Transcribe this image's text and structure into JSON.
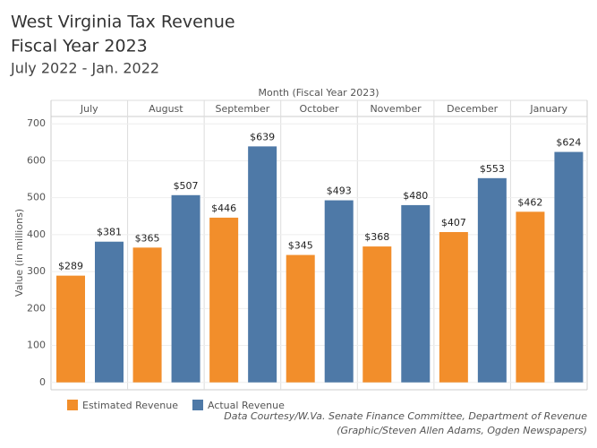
{
  "chart_data": {
    "type": "bar",
    "title": [
      "West Virginia Tax Revenue",
      "Fiscal Year 2023"
    ],
    "subtitle": "July 2022 - Jan. 2022",
    "x_label": "Month (Fiscal Year 2023)",
    "y_label": "Value (in millions)",
    "categories": [
      "July",
      "August",
      "September",
      "October",
      "November",
      "December",
      "January"
    ],
    "series": [
      {
        "name": "Estimated Revenue",
        "color": "#f28e2b",
        "values": [
          289,
          365,
          446,
          345,
          368,
          407,
          462
        ],
        "value_labels": [
          "$289",
          "$365",
          "$446",
          "$345",
          "$368",
          "$407",
          "$462"
        ]
      },
      {
        "name": "Actual Revenue",
        "color": "#4e79a7",
        "values": [
          381,
          507,
          639,
          493,
          480,
          553,
          624
        ],
        "value_labels": [
          "$381",
          "$507",
          "$639",
          "$493",
          "$480",
          "$553",
          "$624"
        ]
      }
    ],
    "ylim": [
      -20,
      720
    ],
    "yticks": [
      0,
      100,
      200,
      300,
      400,
      500,
      600,
      700
    ],
    "grid": true,
    "legend": "bottom-left",
    "source": [
      "Data Courtesy/W.Va. Senate Finance Committee, Department of Revenue",
      "(Graphic/Steven Allen Adams, Ogden Newspapers)"
    ]
  }
}
